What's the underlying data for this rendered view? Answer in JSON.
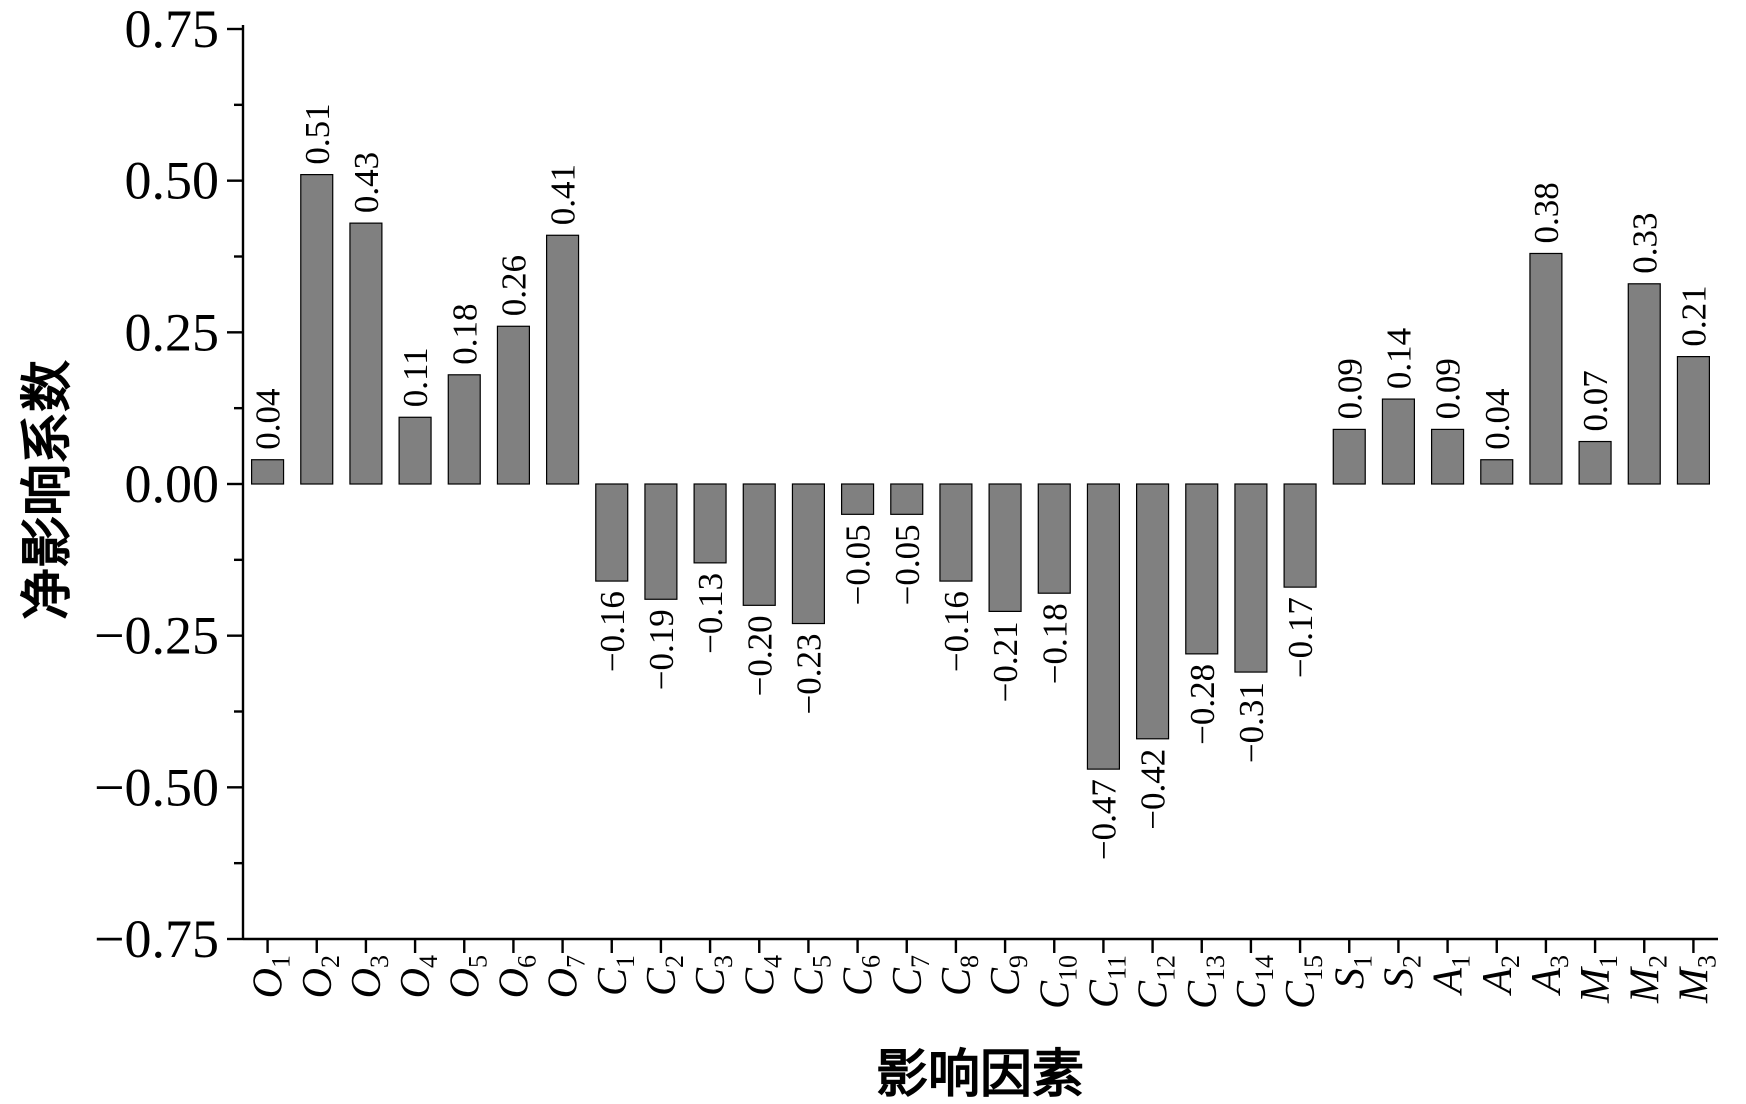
{
  "chart_data": {
    "type": "bar",
    "xlabel": "影响因素",
    "ylabel": "净影响系数",
    "ylim": [
      -0.75,
      0.75
    ],
    "yticks": [
      "0.75",
      "0.50",
      "0.25",
      "0.00",
      "−0.25",
      "−0.50",
      "−0.75"
    ],
    "ytick_values": [
      0.75,
      0.5,
      0.25,
      0,
      -0.25,
      -0.5,
      -0.75
    ],
    "grid": false,
    "legend": "none",
    "bar_color": "#808080",
    "categories": [
      {
        "base": "O",
        "sub": "1"
      },
      {
        "base": "O",
        "sub": "2"
      },
      {
        "base": "O",
        "sub": "3"
      },
      {
        "base": "O",
        "sub": "4"
      },
      {
        "base": "O",
        "sub": "5"
      },
      {
        "base": "O",
        "sub": "6"
      },
      {
        "base": "O",
        "sub": "7"
      },
      {
        "base": "C",
        "sub": "1"
      },
      {
        "base": "C",
        "sub": "2"
      },
      {
        "base": "C",
        "sub": "3"
      },
      {
        "base": "C",
        "sub": "4"
      },
      {
        "base": "C",
        "sub": "5"
      },
      {
        "base": "C",
        "sub": "6"
      },
      {
        "base": "C",
        "sub": "7"
      },
      {
        "base": "C",
        "sub": "8"
      },
      {
        "base": "C",
        "sub": "9"
      },
      {
        "base": "C",
        "sub": "10"
      },
      {
        "base": "C",
        "sub": "11"
      },
      {
        "base": "C",
        "sub": "12"
      },
      {
        "base": "C",
        "sub": "13"
      },
      {
        "base": "C",
        "sub": "14"
      },
      {
        "base": "C",
        "sub": "15"
      },
      {
        "base": "S",
        "sub": "1"
      },
      {
        "base": "S",
        "sub": "2"
      },
      {
        "base": "A",
        "sub": "1"
      },
      {
        "base": "A",
        "sub": "2"
      },
      {
        "base": "A",
        "sub": "3"
      },
      {
        "base": "M",
        "sub": "1"
      },
      {
        "base": "M",
        "sub": "2"
      },
      {
        "base": "M",
        "sub": "3"
      }
    ],
    "values": [
      0.04,
      0.51,
      0.43,
      0.11,
      0.18,
      0.26,
      0.41,
      -0.16,
      -0.19,
      -0.13,
      -0.2,
      -0.23,
      -0.05,
      -0.05,
      -0.16,
      -0.21,
      -0.18,
      -0.47,
      -0.42,
      -0.28,
      -0.31,
      -0.17,
      0.09,
      0.14,
      0.09,
      0.04,
      0.38,
      0.07,
      0.33,
      0.21
    ],
    "value_labels": [
      "0.04",
      "0.51",
      "0.43",
      "0.11",
      "0.18",
      "0.26",
      "0.41",
      "−0.16",
      "−0.19",
      "−0.13",
      "−0.20",
      "−0.23",
      "−0.05",
      "−0.05",
      "−0.16",
      "−0.21",
      "−0.18",
      "−0.47",
      "−0.42",
      "−0.28",
      "−0.31",
      "−0.17",
      "0.09",
      "0.14",
      "0.09",
      "0.04",
      "0.38",
      "0.07",
      "0.33",
      "0.21"
    ]
  }
}
